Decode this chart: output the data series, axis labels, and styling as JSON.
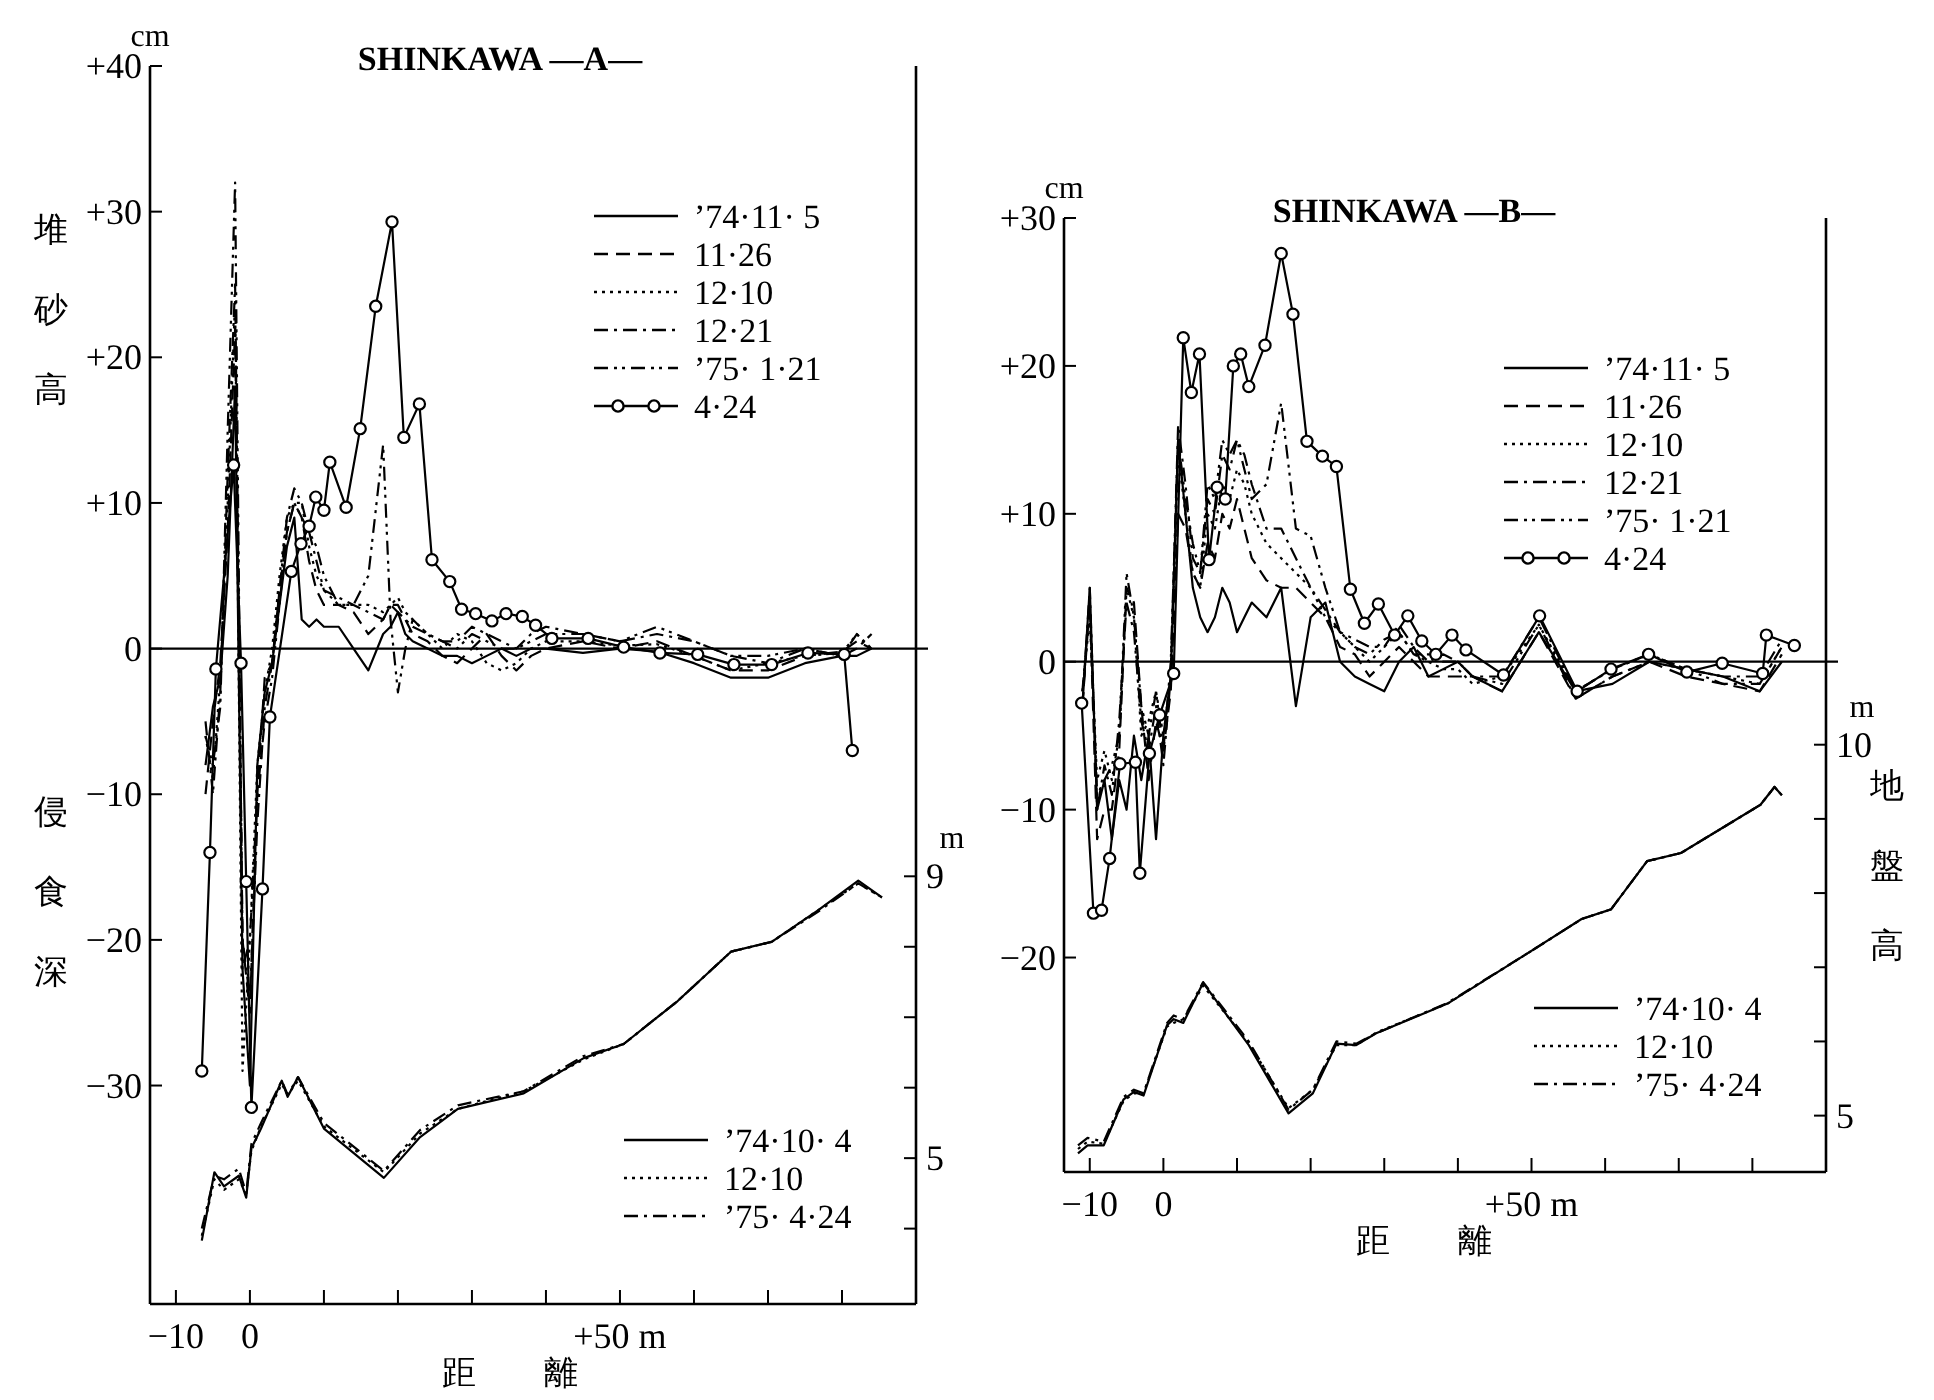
{
  "chart_data": [
    {
      "type": "line",
      "title": "SHINKAWA —A—",
      "xlabel": "距 離",
      "ylabel": "堆砂高",
      "legend": "right",
      "annotations": [
        "cm",
        "m",
        "侵食深"
      ],
      "xlim": [
        -13.5,
        90
      ],
      "xticks": [
        {
          "value": -10,
          "label": "−10"
        },
        0,
        {
          "value": 10,
          "label": null
        },
        {
          "value": 20,
          "label": null
        },
        {
          "value": 30,
          "label": null
        },
        {
          "value": 40,
          "label": null
        },
        {
          "value": 50,
          "label": "+50 m"
        },
        {
          "value": 60,
          "label": null
        },
        {
          "value": 70,
          "label": null
        },
        {
          "value": 80,
          "label": null
        }
      ],
      "ylim": [
        -45,
        40
      ],
      "yticks": [
        {
          "value": 40,
          "label": "+40"
        },
        {
          "value": 30,
          "label": "+30"
        },
        {
          "value": 20,
          "label": "+20"
        },
        {
          "value": 10,
          "label": "+10"
        },
        0,
        {
          "value": -10,
          "label": "−10"
        },
        {
          "value": -20,
          "label": "−20"
        },
        {
          "value": -30,
          "label": "−30"
        }
      ],
      "y2lim": [
        2.93,
        20.5
      ],
      "y2ticks": [
        {
          "value": 4,
          "label": null
        },
        5,
        {
          "value": 6,
          "label": null
        },
        {
          "value": 7,
          "label": null
        },
        {
          "value": 8,
          "label": null
        },
        9
      ],
      "x": [
        -6,
        -5,
        -4,
        -3,
        -2,
        -1,
        0,
        1,
        2,
        3,
        4,
        5,
        6,
        7,
        8,
        9,
        10,
        12,
        14,
        16,
        18,
        19,
        20,
        21,
        22,
        24,
        26,
        28,
        30,
        32,
        34,
        36,
        38,
        40,
        45,
        50,
        55,
        60,
        65,
        70,
        75,
        80,
        82,
        84
      ],
      "series": [
        {
          "name": "’74·11· 5",
          "color": "#000000",
          "line_style": "solid",
          "values": [
            -8,
            -4,
            -2,
            5,
            18,
            -22,
            -30,
            -8,
            -3,
            -1,
            3,
            7,
            9,
            2,
            1.5,
            2,
            1.5,
            1.5,
            0,
            -1.5,
            1,
            1.5,
            2.5,
            1,
            0.5,
            0,
            -0.5,
            -0.5,
            -1,
            -0.5,
            0,
            -0.5,
            0,
            0,
            -0.3,
            0,
            -0.2,
            -1,
            -2,
            -2,
            -1,
            -0.5,
            -0.5,
            0
          ]
        },
        {
          "name": "11·26",
          "color": "#000000",
          "line_style": "dashed",
          "values": [
            -10,
            -5,
            -1,
            8,
            22,
            -20,
            -25,
            -10,
            -2,
            -1,
            4,
            8,
            10,
            9,
            6,
            4,
            3,
            3,
            2.5,
            1,
            2,
            3,
            3,
            2,
            1,
            0.5,
            -0.5,
            -1,
            0,
            1,
            -0.5,
            -1.5,
            -0.5,
            0,
            0.5,
            0,
            0.5,
            -0.5,
            -1.5,
            -1.5,
            -0.5,
            -0.2,
            0.5,
            0
          ]
        },
        {
          "name": "12·10",
          "color": "#000000",
          "line_style": "dotted",
          "values": [
            -6,
            -9,
            -2,
            10,
            24,
            -29,
            -20,
            -8,
            -3,
            0,
            5,
            9,
            10,
            10,
            7,
            5,
            4,
            3,
            3,
            3,
            2.5,
            3,
            3.5,
            2.5,
            2,
            1,
            0,
            1,
            0.5,
            -1,
            -1.5,
            -1,
            0,
            0.5,
            0.5,
            0.2,
            0.3,
            -0.5,
            -1.5,
            -1,
            -0.5,
            -0.3,
            1,
            0
          ]
        },
        {
          "name": "12·21",
          "color": "#000000",
          "line_style": "dashdot",
          "values": [
            -5,
            -10,
            -3,
            12,
            25,
            -20,
            -24,
            -12,
            -4,
            -1,
            4,
            9,
            11,
            10,
            8,
            6,
            4,
            3.5,
            3,
            2.5,
            2,
            3,
            2.5,
            2,
            1.5,
            1,
            0.5,
            0.5,
            1.5,
            1,
            0.5,
            0,
            1,
            1.5,
            1,
            0.5,
            1,
            0.5,
            -0.5,
            -1,
            0,
            -0.5,
            0,
            1
          ]
        },
        {
          "name": "’75· 1·21",
          "color": "#000000",
          "line_style": "dashdotdot",
          "values": [
            -6,
            -8,
            -4,
            15,
            32,
            -22,
            -20,
            -10,
            -5,
            -2,
            3,
            8,
            10,
            9,
            8,
            7,
            5,
            3,
            3,
            5,
            14,
            2,
            -3,
            0,
            2,
            1,
            0.5,
            0,
            1,
            0.5,
            0,
            0,
            0.5,
            1,
            1,
            0.5,
            1.5,
            0.5,
            -0.5,
            -0.5,
            0,
            -0.5,
            1,
            -0.2
          ]
        },
        {
          "name": "4·24",
          "color": "#000000",
          "line_style": "solid",
          "marker": "circle",
          "x": [
            -6.5,
            -5.4,
            -4.6,
            -2.2,
            -1.2,
            -0.5,
            0.2,
            1.7,
            2.7,
            5.6,
            6.9,
            8,
            8.9,
            10,
            10.8,
            13,
            14.9,
            17,
            19.2,
            20.8,
            22.9,
            24.6,
            27,
            28.6,
            30.5,
            32.7,
            34.6,
            36.8,
            38.6,
            40.8,
            45.7,
            50.5,
            55.4,
            60.5,
            65.4,
            70.5,
            75.4,
            80.3,
            81.4
          ],
          "values": [
            -29,
            -14,
            -1.4,
            12.6,
            -1,
            -16,
            -31.5,
            -16.5,
            -4.7,
            5.3,
            7.2,
            8.4,
            10.4,
            9.5,
            12.8,
            9.7,
            15.1,
            23.5,
            29.3,
            14.5,
            16.8,
            6.1,
            4.6,
            2.7,
            2.4,
            1.9,
            2.4,
            2.2,
            1.6,
            0.7,
            0.7,
            0.1,
            -0.3,
            -0.4,
            -1.1,
            -1.1,
            -0.3,
            -0.4,
            -7
          ]
        },
        {
          "name": "’74·10· 4",
          "color": "#000000",
          "axis": "y2",
          "line_style": "solid",
          "x": [
            -6.5,
            -4.8,
            -3.5,
            -1.5,
            -0.5,
            0.2,
            1.5,
            4.3,
            5.1,
            6.5,
            10,
            18.1,
            23,
            28.1,
            37,
            45.1,
            50.5,
            57.8,
            65,
            70.5,
            76.8,
            82.2,
            85.4
          ],
          "values": [
            3.83,
            4.8,
            4.6,
            4.75,
            4.44,
            5.14,
            5.42,
            6.1,
            5.87,
            6.15,
            5.42,
            4.72,
            5.3,
            5.7,
            5.92,
            6.42,
            6.62,
            7.23,
            7.93,
            8.07,
            8.52,
            8.94,
            8.7
          ]
        },
        {
          "name": "12·10",
          "color": "#000000",
          "axis": "y2",
          "line_style": "dotted",
          "x": [
            -6.5,
            -4.8,
            -3.5,
            -1.5,
            -0.5,
            0.2,
            1.5,
            4.3,
            5.1,
            6.5,
            10,
            18.1,
            23,
            28.1,
            37,
            45.1,
            50.5,
            57.8,
            65,
            70.5,
            76.8,
            82.2,
            85.4
          ],
          "values": [
            3.9,
            4.7,
            4.55,
            4.7,
            4.5,
            5.1,
            5.45,
            6.05,
            5.9,
            6.1,
            5.45,
            4.8,
            5.35,
            5.7,
            5.95,
            6.4,
            6.62,
            7.23,
            7.93,
            8.07,
            8.52,
            8.9,
            8.7
          ]
        },
        {
          "name": "’75· 4·24",
          "color": "#000000",
          "axis": "y2",
          "line_style": "dashdot",
          "x": [
            -6.5,
            -4.8,
            -3.5,
            -1.5,
            -0.5,
            0.2,
            1.5,
            4.3,
            5.1,
            6.5,
            10,
            18.1,
            23,
            28.1,
            37,
            45.1,
            50.5,
            57.8,
            65,
            70.5,
            76.8,
            82.2,
            85.4
          ],
          "values": [
            4.0,
            4.75,
            4.7,
            4.85,
            4.5,
            5.2,
            5.5,
            6.1,
            5.9,
            6.15,
            5.5,
            4.82,
            5.4,
            5.75,
            5.95,
            6.45,
            6.62,
            7.23,
            7.93,
            8.07,
            8.5,
            8.9,
            8.7
          ]
        }
      ]
    },
    {
      "type": "line",
      "title": "SHINKAWA —B—",
      "xlabel": "距 離",
      "y2label": "地盤高",
      "legend": "right",
      "annotations": [
        "cm",
        "m"
      ],
      "xlim": [
        -13.5,
        90
      ],
      "xticks": [
        {
          "value": -10,
          "label": "−10"
        },
        0,
        {
          "value": 10,
          "label": null
        },
        {
          "value": 20,
          "label": null
        },
        {
          "value": 30,
          "label": null
        },
        {
          "value": 40,
          "label": null
        },
        {
          "value": 50,
          "label": "+50 m"
        },
        {
          "value": 60,
          "label": null
        },
        {
          "value": 70,
          "label": null
        },
        {
          "value": 80,
          "label": null
        }
      ],
      "ylim": [
        -34.5,
        30
      ],
      "yticks": [
        {
          "value": 30,
          "label": "+30"
        },
        {
          "value": 20,
          "label": "+20"
        },
        {
          "value": 10,
          "label": "+10"
        },
        0,
        {
          "value": -10,
          "label": "−10"
        },
        {
          "value": -20,
          "label": "−20"
        }
      ],
      "y2lim": [
        4.24,
        17.1
      ],
      "y2ticks": [
        5,
        {
          "value": 6,
          "label": null
        },
        {
          "value": 7,
          "label": null
        },
        {
          "value": 8,
          "label": null
        },
        {
          "value": 9,
          "label": null
        },
        10
      ],
      "x": [
        -11,
        -10,
        -9,
        -8,
        -7,
        -6,
        -5,
        -4,
        -3,
        -2,
        -1,
        0,
        1,
        2,
        3,
        4,
        5,
        6,
        7,
        8,
        9,
        10,
        11,
        12,
        14,
        16,
        18,
        20,
        22,
        24,
        26,
        28,
        30,
        32,
        34,
        36,
        38,
        40,
        42,
        46,
        51,
        56,
        61,
        66,
        71,
        76,
        81,
        84
      ],
      "series": [
        {
          "name": "’74·11· 5",
          "color": "#000000",
          "line_style": "solid",
          "values": [
            -3,
            5,
            -10,
            -8,
            -12,
            -8,
            -10,
            -5,
            -8,
            -5,
            -12,
            -5,
            -1,
            15,
            10,
            5,
            3,
            2,
            3,
            5,
            4,
            2,
            3,
            4,
            3,
            5,
            -3,
            3,
            4,
            0,
            -1,
            -1.5,
            -2,
            0,
            1,
            -1,
            -0.5,
            0,
            -1,
            -2,
            2,
            -2,
            -1.5,
            0,
            -0.5,
            -1,
            -2,
            0
          ]
        },
        {
          "name": "11·26",
          "color": "#000000",
          "line_style": "dashed",
          "values": [
            -3,
            4,
            -12,
            -10,
            -10,
            -6,
            5,
            4,
            -3,
            -8,
            -4,
            -6,
            -2,
            10,
            9,
            6,
            5,
            8,
            7,
            10,
            9,
            11,
            9,
            7,
            5.5,
            5,
            5,
            4,
            3,
            1,
            0.5,
            -1,
            0,
            1,
            0,
            -1,
            -1,
            -1,
            -1,
            -2,
            2,
            -2.5,
            -1,
            0,
            -1,
            -1.5,
            -2,
            0.5
          ]
        },
        {
          "name": "12·10",
          "color": "#000000",
          "line_style": "dotted",
          "values": [
            -2,
            3,
            -8,
            -6,
            -8,
            -5,
            5,
            3,
            -5,
            -4,
            -2,
            -5,
            -1,
            14,
            10,
            6,
            5,
            10,
            9,
            12,
            11,
            13,
            12,
            10,
            8,
            7,
            6,
            5,
            3,
            2,
            1,
            0,
            1,
            2,
            0.5,
            0,
            -0.5,
            -0.5,
            -1.5,
            -1,
            2.5,
            -2,
            -0.5,
            0.5,
            -0.5,
            -1,
            -1.5,
            1
          ]
        },
        {
          "name": "12·21",
          "color": "#000000",
          "line_style": "dashdot",
          "values": [
            -3,
            5,
            -10,
            -7,
            -9,
            -4,
            4,
            2,
            -4,
            -6,
            -3,
            -7,
            -1,
            16,
            12,
            7,
            6,
            11,
            10,
            14,
            13,
            15,
            14,
            12,
            9,
            9,
            7,
            5,
            3.5,
            2,
            1.5,
            1,
            1,
            2.5,
            1,
            0,
            0.5,
            0,
            -1,
            -1,
            3,
            -2,
            -0.5,
            0.5,
            -0.5,
            -1,
            -1,
            1.5
          ]
        },
        {
          "name": "’75· 1·21",
          "color": "#000000",
          "line_style": "dashdotdot",
          "values": [
            -2,
            4,
            -9,
            -8,
            -7,
            -5,
            6,
            3,
            -3,
            -5,
            -2,
            -6,
            0,
            15,
            11,
            8,
            6,
            12,
            11,
            15,
            14,
            15,
            13,
            11,
            12,
            17.5,
            9,
            8.5,
            5,
            2,
            1,
            0.5,
            1.5,
            2,
            0.5,
            0.5,
            0,
            0,
            -1,
            -1.5,
            2.5,
            -2.5,
            -1,
            0,
            -0.5,
            -1.5,
            -1.5,
            1
          ]
        },
        {
          "name": "4·24",
          "color": "#000000",
          "line_style": "solid",
          "marker": "circle",
          "x": [
            -11.1,
            -9.5,
            -8.4,
            -7.3,
            -5.9,
            -3.8,
            -3.2,
            -1.9,
            -0.5,
            1.4,
            2.7,
            3.8,
            4.9,
            6.2,
            7.3,
            8.4,
            9.5,
            10.5,
            11.6,
            13.8,
            16,
            17.6,
            19.5,
            21.6,
            23.5,
            25.4,
            27.3,
            29.2,
            31.4,
            33.2,
            35.1,
            37,
            39.2,
            41.1,
            46.2,
            51.1,
            56.2,
            60.8,
            65.9,
            71.1,
            75.9,
            81.4,
            81.9,
            85.7
          ],
          "values": [
            -2.8,
            -17,
            -16.8,
            -13.3,
            -6.9,
            -6.8,
            -14.3,
            -6.2,
            -3.6,
            -0.8,
            21.9,
            18.2,
            20.8,
            6.9,
            11.8,
            11,
            20,
            20.8,
            18.6,
            21.4,
            27.6,
            23.5,
            14.9,
            13.9,
            13.2,
            4.9,
            2.6,
            3.9,
            1.8,
            3.1,
            1.4,
            0.5,
            1.8,
            0.8,
            -0.9,
            3.1,
            -2,
            -0.5,
            0.5,
            -0.7,
            -0.1,
            -0.8,
            1.8,
            1.1
          ]
        },
        {
          "name": "’74·10· 4",
          "color": "#000000",
          "axis": "y2",
          "line_style": "solid",
          "x": [
            -11.6,
            -10.3,
            -8.1,
            -5.4,
            -4,
            -2.7,
            0.5,
            1.4,
            2.7,
            5.4,
            11.6,
            17,
            20.3,
            23.5,
            26.2,
            28.9,
            38.6,
            49.5,
            56.8,
            60.8,
            65.7,
            70.3,
            81.1,
            83,
            84
          ],
          "values": [
            4.49,
            4.6,
            4.6,
            5.22,
            5.32,
            5.27,
            6.22,
            6.3,
            6.25,
            6.79,
            5.95,
            5.03,
            5.3,
            5.97,
            5.95,
            6.11,
            6.51,
            7.19,
            7.65,
            7.78,
            8.43,
            8.54,
            9.19,
            9.43,
            9.32
          ]
        },
        {
          "name": "12·10",
          "color": "#000000",
          "axis": "y2",
          "line_style": "dotted",
          "x": [
            -11.6,
            -10.3,
            -8.1,
            -5.4,
            -4,
            -2.7,
            0.5,
            1.4,
            2.7,
            5.4,
            11.6,
            17,
            20.3,
            23.5,
            26.2,
            28.9,
            38.6,
            49.5,
            56.8,
            60.8,
            65.7,
            70.3,
            81.1,
            83,
            84
          ],
          "values": [
            4.55,
            4.65,
            4.62,
            5.2,
            5.3,
            5.3,
            6.2,
            6.25,
            6.3,
            6.75,
            5.98,
            5.1,
            5.35,
            5.95,
            5.95,
            6.12,
            6.51,
            7.19,
            7.65,
            7.78,
            8.43,
            8.54,
            9.19,
            9.43,
            9.32
          ]
        },
        {
          "name": "’75· 4·24",
          "color": "#000000",
          "axis": "y2",
          "line_style": "dashdot",
          "x": [
            -11.6,
            -10.3,
            -8.1,
            -5.4,
            -4,
            -2.7,
            0.5,
            1.4,
            2.7,
            5.4,
            11.6,
            17,
            20.3,
            23.5,
            26.2,
            28.9,
            38.6,
            49.5,
            56.8,
            60.8,
            65.7,
            70.3,
            81.1,
            83,
            84
          ],
          "values": [
            4.6,
            4.7,
            4.65,
            5.25,
            5.35,
            5.3,
            6.25,
            6.35,
            6.3,
            6.8,
            6.0,
            5.08,
            5.35,
            6.0,
            5.97,
            6.11,
            6.52,
            7.19,
            7.65,
            7.78,
            8.43,
            8.54,
            9.19,
            9.43,
            9.32
          ]
        }
      ]
    }
  ]
}
